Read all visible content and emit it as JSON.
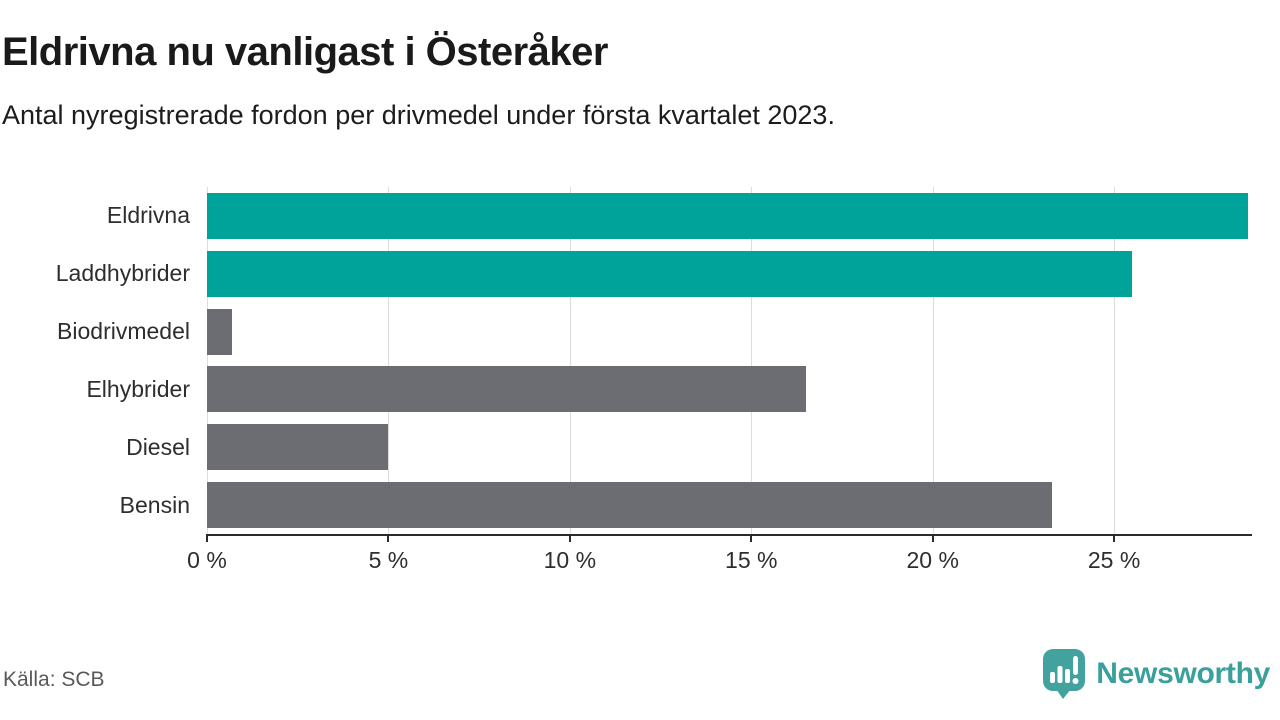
{
  "header": {
    "title": "Eldrivna nu vanligast i Österåker",
    "subtitle": "Antal nyregistrerade fordon per drivmedel under första kvartalet 2023."
  },
  "chart_data": {
    "type": "bar",
    "orientation": "horizontal",
    "title": "Eldrivna nu vanligast i Österåker",
    "subtitle": "Antal nyregistrerade fordon per drivmedel under första kvartalet 2023.",
    "categories": [
      "Eldrivna",
      "Laddhybrider",
      "Biodrivmedel",
      "Elhybrider",
      "Diesel",
      "Bensin"
    ],
    "values": [
      28.7,
      25.5,
      0.7,
      16.5,
      5.0,
      23.3
    ],
    "unit": "%",
    "bar_colors": [
      "#00a399",
      "#00a399",
      "#6c6c73",
      "#6c6c73",
      "#6c6c73",
      "#6c6c73"
    ],
    "xlabel": "",
    "ylabel": "",
    "xlim": [
      0,
      28.8
    ],
    "x_ticks": [
      0,
      5,
      10,
      15,
      20,
      25
    ],
    "x_tick_labels": [
      "0 %",
      "5 %",
      "10 %",
      "15 %",
      "20 %",
      "25 %"
    ],
    "grid": true,
    "legend": false
  },
  "footer": {
    "source": "Källa: SCB",
    "logo_text": "Newsworthy"
  },
  "colors": {
    "teal": "#00a399",
    "gray": "#6c6c73",
    "logo_teal": "#42a39e",
    "grid_line": "#dcdcdc",
    "axis_line": "#2b2b2b"
  }
}
